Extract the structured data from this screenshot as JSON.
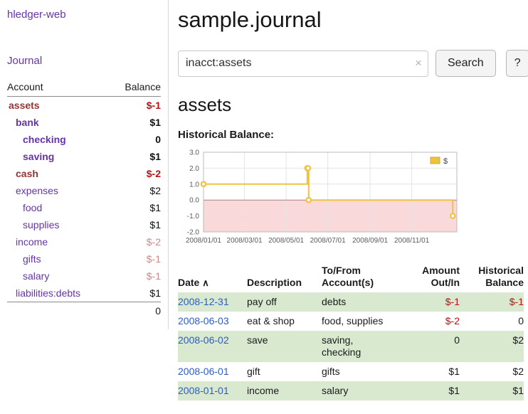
{
  "colors": {
    "link_purple": "#6633aa",
    "maroon": "#993333",
    "negative_red": "#bb1111",
    "muted_negative": "#cc8888",
    "date_blue": "#2a5bcc",
    "row_green": "#d9e9d0"
  },
  "sidebar": {
    "app_title": "hledger-web",
    "journal_link": "Journal",
    "table": {
      "account_header": "Account",
      "balance_header": "Balance",
      "accounts": [
        {
          "name": "assets",
          "indent": 0,
          "balance": "$-1",
          "style": "current-neg"
        },
        {
          "name": "bank",
          "indent": 1,
          "balance": "$1",
          "style": "current"
        },
        {
          "name": "checking",
          "indent": 2,
          "balance": "0",
          "style": "current"
        },
        {
          "name": "saving",
          "indent": 2,
          "balance": "$1",
          "style": "current"
        },
        {
          "name": "cash",
          "indent": 1,
          "balance": "$-2",
          "style": "current-neg"
        },
        {
          "name": "expenses",
          "indent": 1,
          "balance": "$2",
          "style": "plain"
        },
        {
          "name": "food",
          "indent": 2,
          "balance": "$1",
          "style": "plain"
        },
        {
          "name": "supplies",
          "indent": 2,
          "balance": "$1",
          "style": "plain"
        },
        {
          "name": "income",
          "indent": 1,
          "balance": "$-2",
          "style": "neg-muted"
        },
        {
          "name": "gifts",
          "indent": 2,
          "balance": "$-1",
          "style": "neg-muted"
        },
        {
          "name": "salary",
          "indent": 2,
          "balance": "$-1",
          "style": "neg-muted"
        },
        {
          "name": "liabilities:debts",
          "indent": 1,
          "balance": "$1",
          "style": "plain"
        }
      ],
      "total": "0"
    }
  },
  "main": {
    "title": "sample.journal",
    "search": {
      "value": "inacct:assets",
      "clear_icon": "×",
      "button_label": "Search",
      "help_label": "?"
    },
    "account_heading": "assets",
    "register": {
      "headers": {
        "date": "Date",
        "description": "Description",
        "account": "To/From Account(s)",
        "amount": "Amount Out/In",
        "balance": "Historical Balance"
      },
      "sort_icon": "∧",
      "rows": [
        {
          "date": "2008-12-31",
          "description": "pay off",
          "accounts": "debts",
          "amount": "$-1",
          "amount_negative": true,
          "balance": "$-1",
          "balance_negative": true
        },
        {
          "date": "2008-06-03",
          "description": "eat & shop",
          "accounts": "food, supplies",
          "amount": "$-2",
          "amount_negative": true,
          "balance": "0",
          "balance_negative": false
        },
        {
          "date": "2008-06-02",
          "description": "save",
          "accounts": "saving, checking",
          "amount": "0",
          "amount_negative": false,
          "balance": "$2",
          "balance_negative": false
        },
        {
          "date": "2008-06-01",
          "description": "gift",
          "accounts": "gifts",
          "amount": "$1",
          "amount_negative": false,
          "balance": "$2",
          "balance_negative": false
        },
        {
          "date": "2008-01-01",
          "description": "income",
          "accounts": "salary",
          "amount": "$1",
          "amount_negative": false,
          "balance": "$1",
          "balance_negative": false
        }
      ]
    }
  },
  "chart_data": {
    "type": "line",
    "title": "Historical Balance:",
    "step": true,
    "series": [
      {
        "name": "$",
        "color": "#edc240",
        "points": [
          {
            "date": "2008-01-01",
            "value": 1
          },
          {
            "date": "2008-06-01",
            "value": 2
          },
          {
            "date": "2008-06-02",
            "value": 2
          },
          {
            "date": "2008-06-03",
            "value": 0
          },
          {
            "date": "2008-12-31",
            "value": -1
          }
        ]
      }
    ],
    "ylim": [
      -2,
      3
    ],
    "yticks": [
      3,
      2,
      1,
      0,
      -1,
      -2
    ],
    "xticks": [
      "2008/01/01",
      "2008/03/01",
      "2008/05/01",
      "2008/07/01",
      "2008/09/01",
      "2008/11/01"
    ],
    "xlim": [
      "2008-01-01",
      "2009-01-06"
    ],
    "grid": true,
    "legend_position": "top-right",
    "negative_region_color": "#f9d9d9",
    "plot_border_color": "#bbbbbb",
    "tick_label_color": "#5a5a5a"
  }
}
